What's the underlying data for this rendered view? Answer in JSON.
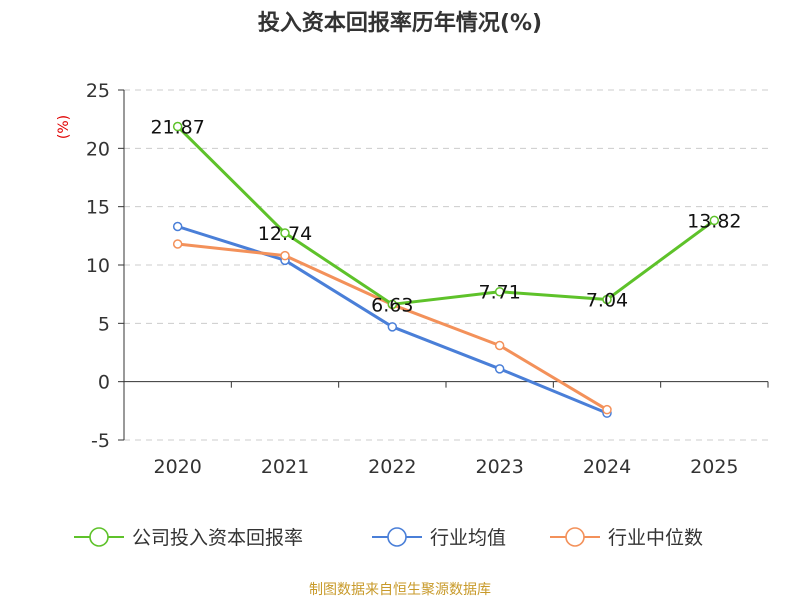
{
  "chart_data": {
    "type": "line",
    "title": "投入资本回报率历年情况(%)",
    "ylabel": "(%)",
    "xlabel": "",
    "categories": [
      "2020",
      "2021",
      "2022",
      "2023",
      "2024",
      "2025"
    ],
    "ylim": [
      -5,
      25
    ],
    "yticks": [
      25,
      20,
      15,
      10,
      5,
      0,
      -5
    ],
    "grid": true,
    "legend_position": "bottom",
    "series": [
      {
        "name": "公司投入资本回报率",
        "color": "#5ec22a",
        "values": [
          21.87,
          12.74,
          6.63,
          7.71,
          7.04,
          13.82
        ],
        "labels": [
          "21.87",
          "12.74",
          "6.63",
          "7.71",
          "7.04",
          "13.82"
        ]
      },
      {
        "name": "行业均值",
        "color": "#4a7fd8",
        "values": [
          13.3,
          10.4,
          4.7,
          1.1,
          -2.7,
          null
        ]
      },
      {
        "name": "行业中位数",
        "color": "#f3915a",
        "values": [
          11.8,
          10.8,
          6.6,
          3.1,
          -2.4,
          null
        ]
      }
    ],
    "source": "制图数据来自恒生聚源数据库"
  }
}
